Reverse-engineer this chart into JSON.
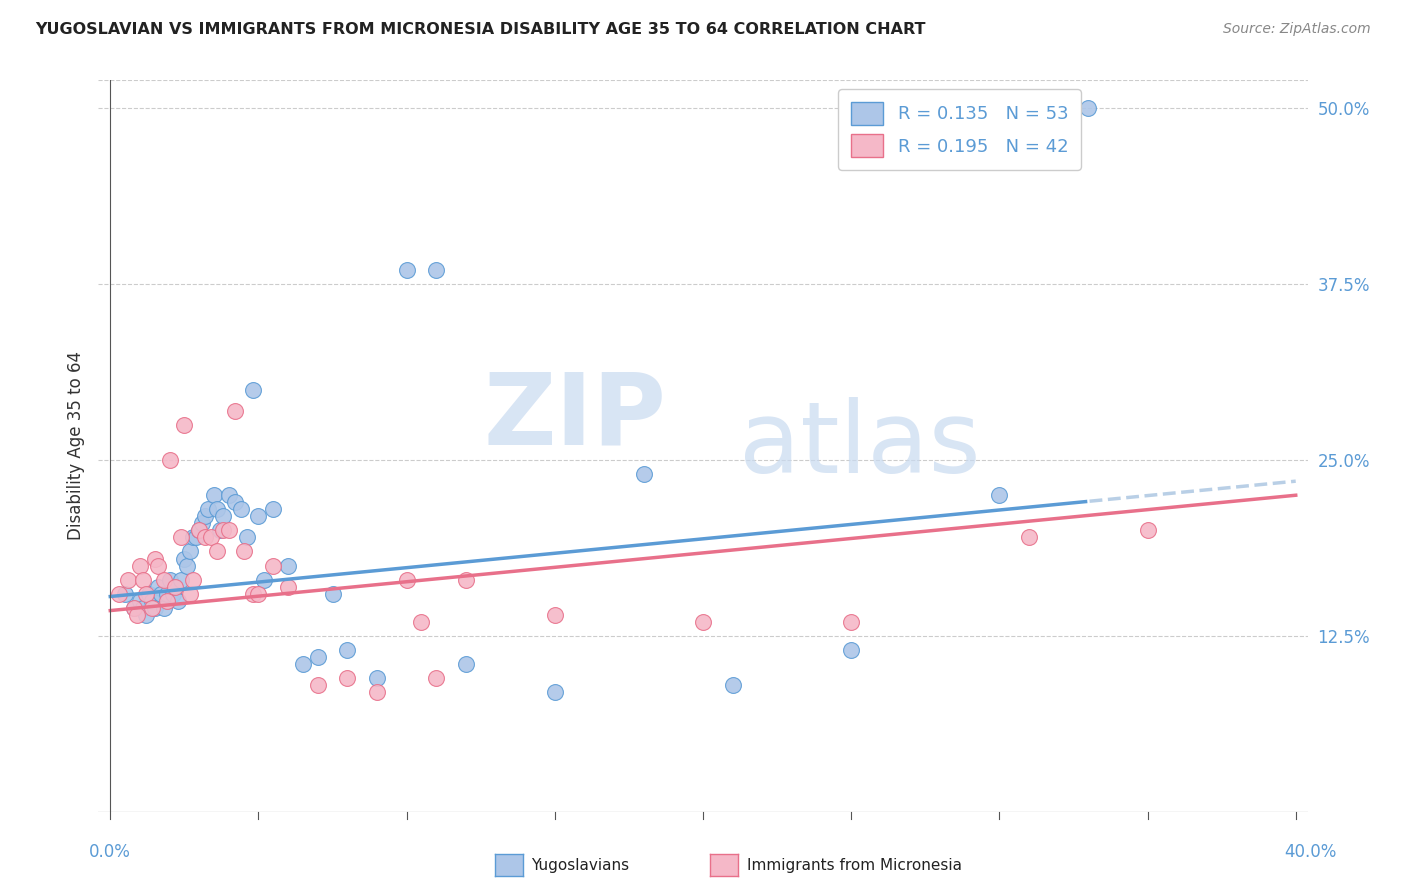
{
  "title": "YUGOSLAVIAN VS IMMIGRANTS FROM MICRONESIA DISABILITY AGE 35 TO 64 CORRELATION CHART",
  "source": "Source: ZipAtlas.com",
  "ylabel": "Disability Age 35 to 64",
  "ytick_labels": [
    "12.5%",
    "25.0%",
    "37.5%",
    "50.0%"
  ],
  "ytick_values": [
    0.125,
    0.25,
    0.375,
    0.5
  ],
  "xlim": [
    0.0,
    0.4
  ],
  "ylim": [
    0.0,
    0.52
  ],
  "legend1_R": "0.135",
  "legend1_N": "53",
  "legend2_R": "0.195",
  "legend2_N": "42",
  "legend_label1": "Yugoslavians",
  "legend_label2": "Immigrants from Micronesia",
  "color_blue": "#adc6e8",
  "color_pink": "#f5b8c8",
  "line_blue": "#5b9bd5",
  "line_pink": "#e8708a",
  "line_blue_dashed": "#a8c4e0",
  "watermark_zip": "ZIP",
  "watermark_atlas": "atlas",
  "blue_x": [
    0.005,
    0.008,
    0.01,
    0.011,
    0.012,
    0.013,
    0.014,
    0.015,
    0.016,
    0.017,
    0.018,
    0.019,
    0.02,
    0.021,
    0.022,
    0.023,
    0.024,
    0.025,
    0.026,
    0.027,
    0.028,
    0.029,
    0.03,
    0.031,
    0.032,
    0.033,
    0.035,
    0.036,
    0.037,
    0.038,
    0.04,
    0.042,
    0.044,
    0.046,
    0.048,
    0.05,
    0.052,
    0.055,
    0.06,
    0.065,
    0.07,
    0.075,
    0.08,
    0.09,
    0.1,
    0.11,
    0.12,
    0.15,
    0.18,
    0.21,
    0.25,
    0.3,
    0.33
  ],
  "blue_y": [
    0.155,
    0.145,
    0.15,
    0.145,
    0.14,
    0.155,
    0.15,
    0.145,
    0.16,
    0.155,
    0.145,
    0.155,
    0.165,
    0.155,
    0.16,
    0.15,
    0.165,
    0.18,
    0.175,
    0.185,
    0.195,
    0.195,
    0.2,
    0.205,
    0.21,
    0.215,
    0.225,
    0.215,
    0.2,
    0.21,
    0.225,
    0.22,
    0.215,
    0.195,
    0.3,
    0.21,
    0.165,
    0.215,
    0.175,
    0.105,
    0.11,
    0.155,
    0.115,
    0.095,
    0.385,
    0.385,
    0.105,
    0.085,
    0.24,
    0.09,
    0.115,
    0.225,
    0.5
  ],
  "pink_x": [
    0.003,
    0.006,
    0.008,
    0.009,
    0.01,
    0.011,
    0.012,
    0.014,
    0.015,
    0.016,
    0.018,
    0.019,
    0.02,
    0.022,
    0.024,
    0.025,
    0.027,
    0.028,
    0.03,
    0.032,
    0.034,
    0.036,
    0.038,
    0.04,
    0.042,
    0.045,
    0.048,
    0.05,
    0.055,
    0.06,
    0.07,
    0.08,
    0.09,
    0.1,
    0.105,
    0.11,
    0.12,
    0.15,
    0.2,
    0.25,
    0.31,
    0.35
  ],
  "pink_y": [
    0.155,
    0.165,
    0.145,
    0.14,
    0.175,
    0.165,
    0.155,
    0.145,
    0.18,
    0.175,
    0.165,
    0.15,
    0.25,
    0.16,
    0.195,
    0.275,
    0.155,
    0.165,
    0.2,
    0.195,
    0.195,
    0.185,
    0.2,
    0.2,
    0.285,
    0.185,
    0.155,
    0.155,
    0.175,
    0.16,
    0.09,
    0.095,
    0.085,
    0.165,
    0.135,
    0.095,
    0.165,
    0.14,
    0.135,
    0.135,
    0.195,
    0.2
  ]
}
